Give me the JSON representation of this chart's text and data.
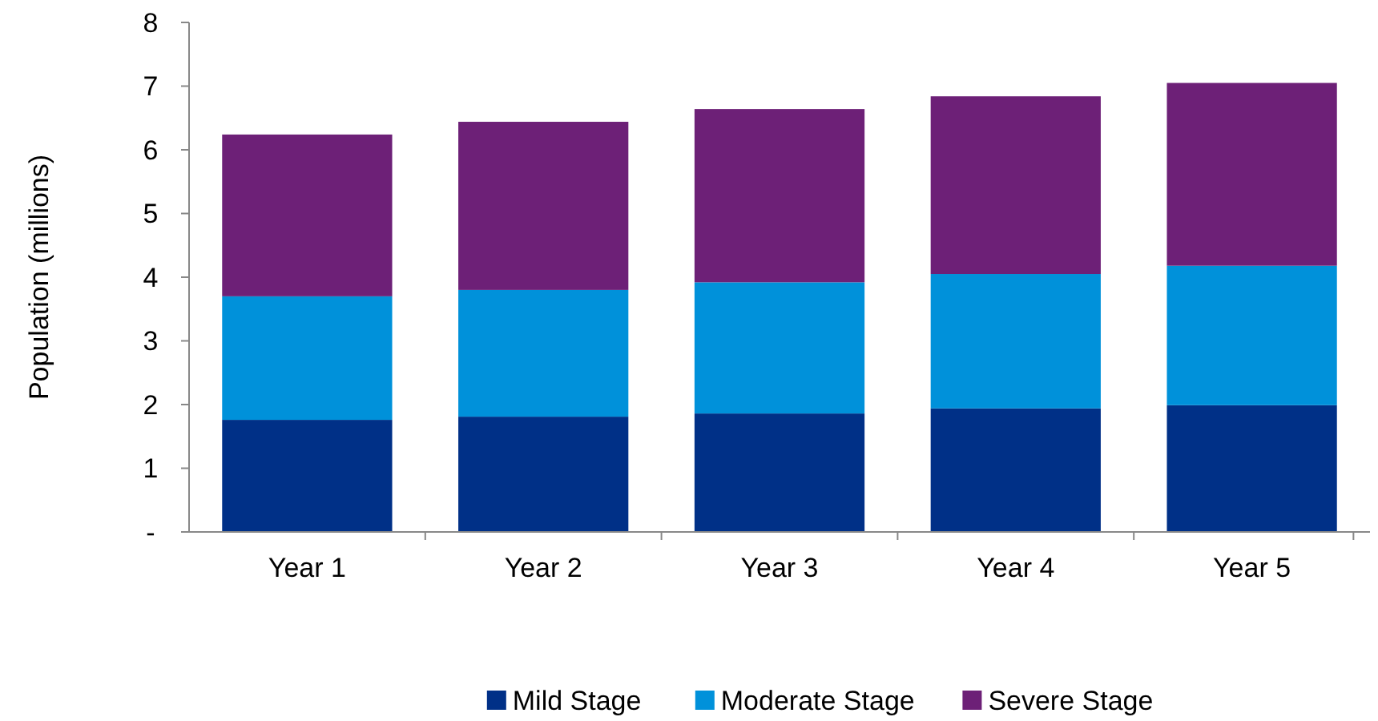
{
  "chart_data": {
    "type": "bar",
    "stacked": true,
    "ylabel": "Population (millions)",
    "categories": [
      "Year 1",
      "Year 2",
      "Year 3",
      "Year 4",
      "Year 5"
    ],
    "series": [
      {
        "name": "Mild Stage",
        "color": "#003087",
        "values": [
          1.76,
          1.81,
          1.86,
          1.94,
          1.99
        ]
      },
      {
        "name": "Moderate Stage",
        "color": "#0091da",
        "values": [
          1.94,
          1.99,
          2.06,
          2.11,
          2.19
        ]
      },
      {
        "name": "Severe Stage",
        "color": "#6d2077",
        "values": [
          2.54,
          2.64,
          2.72,
          2.79,
          2.87
        ]
      }
    ],
    "ylim": [
      0,
      8
    ],
    "yticks": [
      {
        "value": 0,
        "label": "-"
      },
      1,
      2,
      3,
      4,
      5,
      6,
      7,
      8
    ],
    "grid": false,
    "legend": "bottom"
  }
}
